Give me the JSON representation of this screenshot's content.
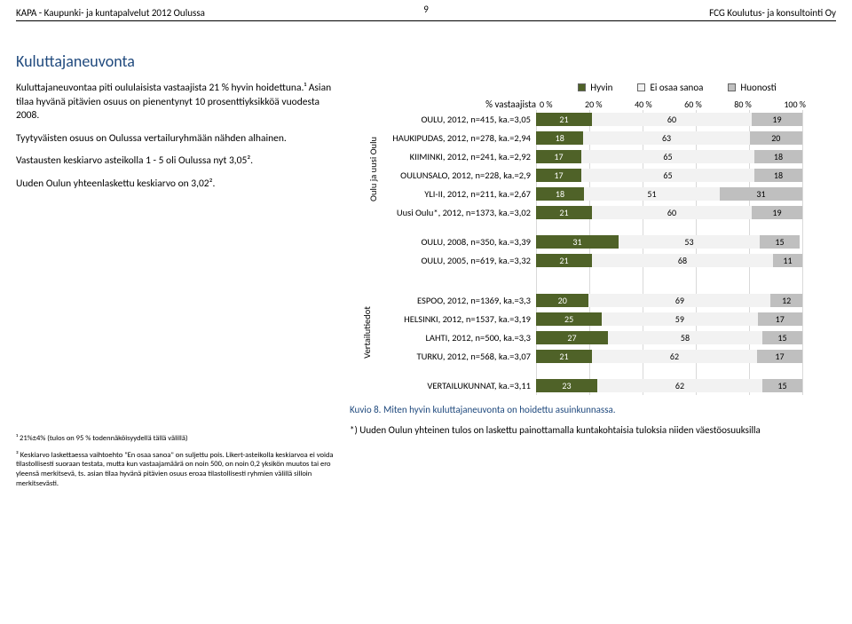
{
  "header": {
    "left": "KAPA - Kaupunki- ja kuntapalvelut 2012 Oulussa",
    "page": "9",
    "right": "FCG Koulutus- ja konsultointi Oy"
  },
  "title": "Kuluttajaneuvonta",
  "description": {
    "p1": "Kuluttajaneuvontaa piti oululaisista vastaajista 21 % hyvin hoidettuna.¹ Asian tilaa hyvänä pitävien osuus on pienentynyt 10 prosenttiyksikköä vuodesta 2008.",
    "p2": "Tyytyväisten osuus on Oulussa vertailuryhmään nähden alhainen.",
    "p3": "Vastausten keskiarvo asteikolla 1 - 5 oli Oulussa nyt 3,05².",
    "p4": "Uuden Oulun yhteenlaskettu keskiarvo on 3,02²."
  },
  "legend": {
    "good": {
      "label": "Hyvin",
      "color": "#4f6228"
    },
    "neutral": {
      "label": "Ei osaa sanoa",
      "color": "#f2f2f2"
    },
    "bad": {
      "label": "Huonosti",
      "color": "#bfbfbf"
    }
  },
  "axis": {
    "title": "% vastaajista",
    "ticks": [
      "0 %",
      "20 %",
      "40 %",
      "60 %",
      "80 %",
      "100 %"
    ]
  },
  "group1_label": "Oulu ja uusi Oulu",
  "group2_label": "Vertailutiedot",
  "colors": {
    "good": "#4f6228",
    "neutral": "#f2f2f2",
    "bad": "#bfbfbf"
  },
  "rows_main": [
    {
      "label": "OULU, 2012, n=415, ka.=3,05",
      "values": [
        21,
        60,
        19
      ]
    },
    {
      "label": "HAUKIPUDAS, 2012, n=278, ka.=2,94",
      "values": [
        18,
        63,
        20
      ]
    },
    {
      "label": "KIIMINKI, 2012, n=241, ka.=2,92",
      "values": [
        17,
        65,
        18
      ]
    },
    {
      "label": "OULUNSALO, 2012, n=228, ka.=2,9",
      "values": [
        17,
        65,
        18
      ]
    },
    {
      "label": "YLI-II, 2012, n=211, ka.=2,67",
      "values": [
        18,
        51,
        31
      ]
    },
    {
      "label": "Uusi Oulu*, 2012, n=1373, ka.=3,02",
      "values": [
        21,
        60,
        19
      ]
    }
  ],
  "rows_hist": [
    {
      "label": "OULU, 2008, n=350, ka.=3,39",
      "values": [
        31,
        53,
        15
      ]
    },
    {
      "label": "OULU, 2005, n=619, ka.=3,32",
      "values": [
        21,
        68,
        11
      ]
    }
  ],
  "rows_compare": [
    {
      "label": "ESPOO, 2012, n=1369, ka.=3,3",
      "values": [
        20,
        69,
        12
      ]
    },
    {
      "label": "HELSINKI, 2012, n=1537, ka.=3,19",
      "values": [
        25,
        59,
        17
      ]
    },
    {
      "label": "LAHTI, 2012, n=500, ka.=3,3",
      "values": [
        27,
        58,
        15
      ]
    },
    {
      "label": "TURKU, 2012, n=568, ka.=3,07",
      "values": [
        21,
        62,
        17
      ]
    }
  ],
  "rows_summary": [
    {
      "label": "VERTAILUKUNNAT, ka.=3,11",
      "values": [
        23,
        62,
        15
      ]
    }
  ],
  "footnotes": {
    "f1": "¹ 21%±4% (tulos on 95 % todennäköisyydellä tällä välillä)",
    "f2": "² Keskiarvo laskettaessa vaihtoehto \"En osaa sanoa\" on suljettu pois. Likert-asteikolla keskiarvoa ei voida tilastollisesti suoraan testata, mutta kun vastaajamäärä on noin 500, on noin 0,2 yksikön muutos tai ero yleensä merkitsevä, ts. asian tilaa hyvänä pitävien osuus eroaa tilastollisesti ryhmien välillä silloin merkitsevästi."
  },
  "caption": "Kuvio 8. Miten hyvin kuluttajaneuvonta on hoidettu asuinkunnassa.",
  "asterisk": "*) Uuden Oulun yhteinen tulos on laskettu painottamalla kuntakohtaisia tuloksia niiden väestöosuuksilla"
}
